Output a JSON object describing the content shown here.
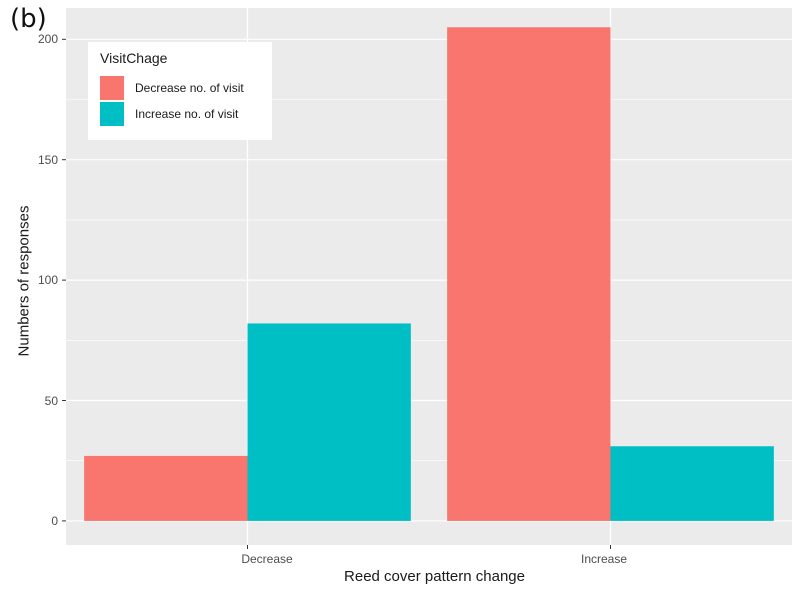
{
  "panel_label": "(b)",
  "colors": {
    "panel_bg": "#EBEBEB",
    "grid": "#FFFFFF",
    "decrease": "#F8766D",
    "increase": "#00BFC4"
  },
  "chart_data": {
    "type": "bar",
    "categories": [
      "Decrease",
      "Increase"
    ],
    "series": [
      {
        "name": "Decrease no. of visit",
        "values": [
          27,
          205
        ],
        "color": "#F8766D"
      },
      {
        "name": "Increase no. of visit",
        "values": [
          82,
          31
        ],
        "color": "#00BFC4"
      }
    ],
    "legend_title": "VisitChage",
    "legend_position": "top-left",
    "title": "",
    "xlabel": "Reed cover pattern change",
    "ylabel": "Numbers of responses",
    "ylim": [
      -10,
      213
    ],
    "yticks": [
      "0",
      "50",
      "100",
      "150",
      "200"
    ],
    "ytick_values": [
      0,
      50,
      100,
      150,
      200
    ],
    "grid": true
  }
}
